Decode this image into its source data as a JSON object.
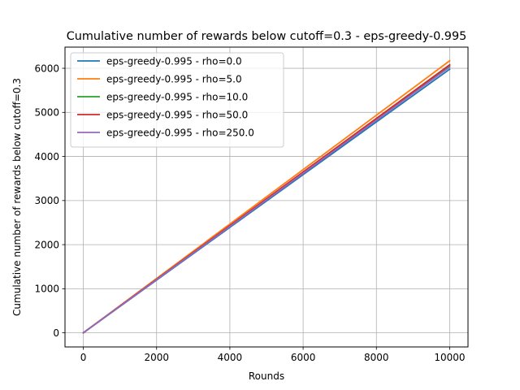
{
  "chart_data": {
    "type": "line",
    "title": "Cumulative number of rewards below cutoff=0.3 - eps-greedy-0.995",
    "xlabel": "Rounds",
    "ylabel": "Cumulative number of rewards below cutoff=0.3",
    "xlim": [
      -500,
      10500
    ],
    "ylim": [
      -320,
      6480
    ],
    "xticks": [
      0,
      2000,
      4000,
      6000,
      8000,
      10000
    ],
    "xtick_labels": [
      "0",
      "2000",
      "4000",
      "6000",
      "8000",
      "10000"
    ],
    "yticks": [
      0,
      1000,
      2000,
      3000,
      4000,
      5000,
      6000
    ],
    "ytick_labels": [
      "0",
      "1000",
      "2000",
      "3000",
      "4000",
      "5000",
      "6000"
    ],
    "grid": true,
    "legend_position": "top-left",
    "series": [
      {
        "name": "eps-greedy-0.995 - rho=0.0",
        "color": "#1f77b4",
        "x": [
          0,
          10000
        ],
        "y": [
          0,
          5980
        ]
      },
      {
        "name": "eps-greedy-0.995 - rho=5.0",
        "color": "#ff7f0e",
        "x": [
          0,
          10000
        ],
        "y": [
          0,
          6170
        ]
      },
      {
        "name": "eps-greedy-0.995 - rho=10.0",
        "color": "#2ca02c",
        "x": [
          0,
          10000
        ],
        "y": [
          0,
          6060
        ]
      },
      {
        "name": "eps-greedy-0.995 - rho=50.0",
        "color": "#d62728",
        "x": [
          0,
          10000
        ],
        "y": [
          0,
          6080
        ]
      },
      {
        "name": "eps-greedy-0.995 - rho=250.0",
        "color": "#9467bd",
        "x": [
          0,
          10000
        ],
        "y": [
          0,
          6030
        ]
      }
    ]
  }
}
